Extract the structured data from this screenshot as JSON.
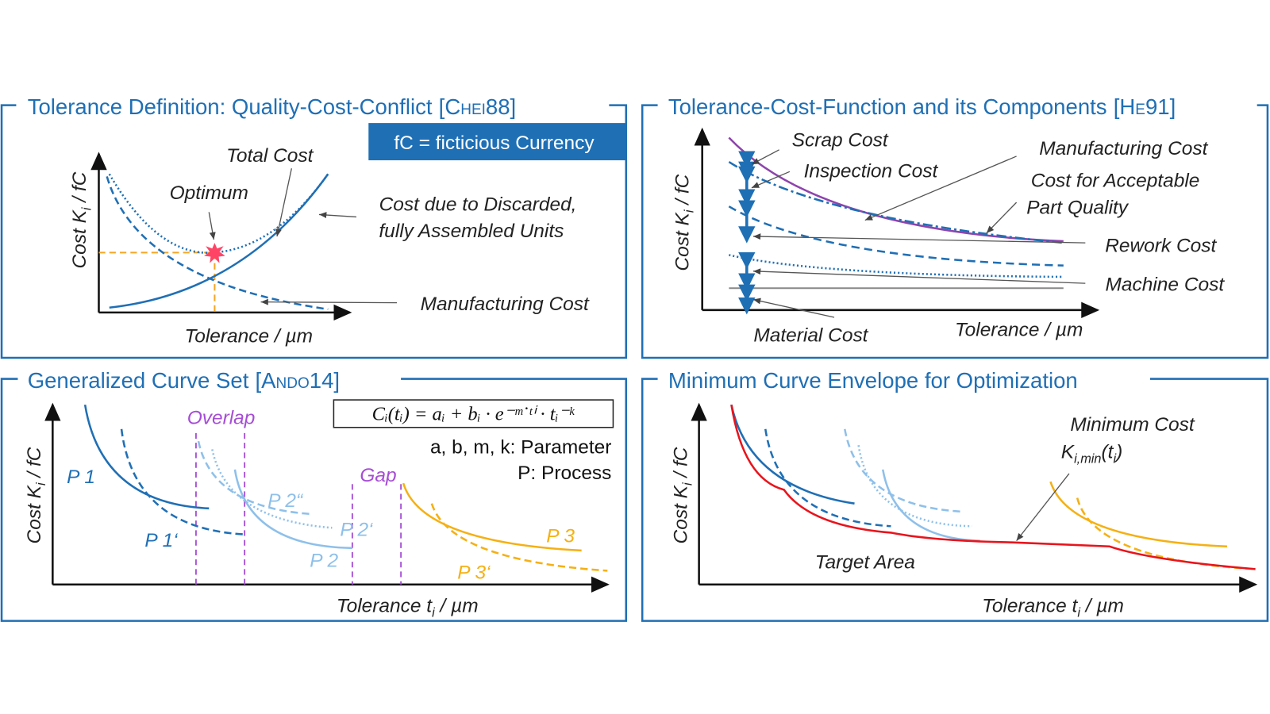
{
  "panels": [
    {
      "title": "Tolerance Definition: Quality-Cost-Conflict",
      "ref": "[Chei88]",
      "note": "fC = ficticious Currency",
      "y_label": {
        "text": "Cost K",
        "sub": "i",
        "unit": " / fC"
      },
      "x_label": "Tolerance / µm",
      "labels": [
        "Total Cost",
        "Optimum",
        "Cost due to Discarded,",
        "fully Assembled Units",
        "Manufacturing Cost"
      ]
    },
    {
      "title": "Tolerance-Cost-Function and its Components",
      "ref": "[He91]",
      "y_label": {
        "text": "Cost K",
        "sub": "i",
        "unit": " / fC"
      },
      "x_label": "Tolerance / µm",
      "labels": [
        "Scrap Cost",
        "Inspection Cost",
        "Manufacturing Cost",
        "Cost for Acceptable",
        "Part Quality",
        "Rework Cost",
        "Machine Cost",
        "Material Cost"
      ]
    },
    {
      "title": "Generalized Curve Set",
      "ref": "[Ando14]",
      "y_label": {
        "text": "Cost K",
        "sub": "i",
        "unit": " / fC"
      },
      "x_label": {
        "text": "Tolerance t",
        "sub": "i",
        "unit": " / µm"
      },
      "formula": "Cᵢ(tᵢ) = aᵢ + bᵢ · e⁻ᵐ˙ᵗⁱ · tᵢ⁻ᵏ",
      "legend": [
        "a, b, m, k: Parameter",
        "P: Process"
      ],
      "labels": [
        "Overlap",
        "Gap",
        "P 1",
        "P 1‘",
        "P 2“",
        "P 2‘",
        "P 2",
        "P 3",
        "P 3‘"
      ]
    },
    {
      "title": "Minimum Curve Envelope for Optimization",
      "y_label": {
        "text": "Cost K",
        "sub": "i",
        "unit": " / fC"
      },
      "x_label": {
        "text": "Tolerance t",
        "sub": "i",
        "unit": " / µm"
      },
      "labels": [
        "Minimum Cost",
        "Target Area"
      ],
      "min_label": {
        "text": "K",
        "sub": "i,min",
        "paren": "(t",
        "paren_sub": "i",
        "close": ")"
      }
    }
  ]
}
